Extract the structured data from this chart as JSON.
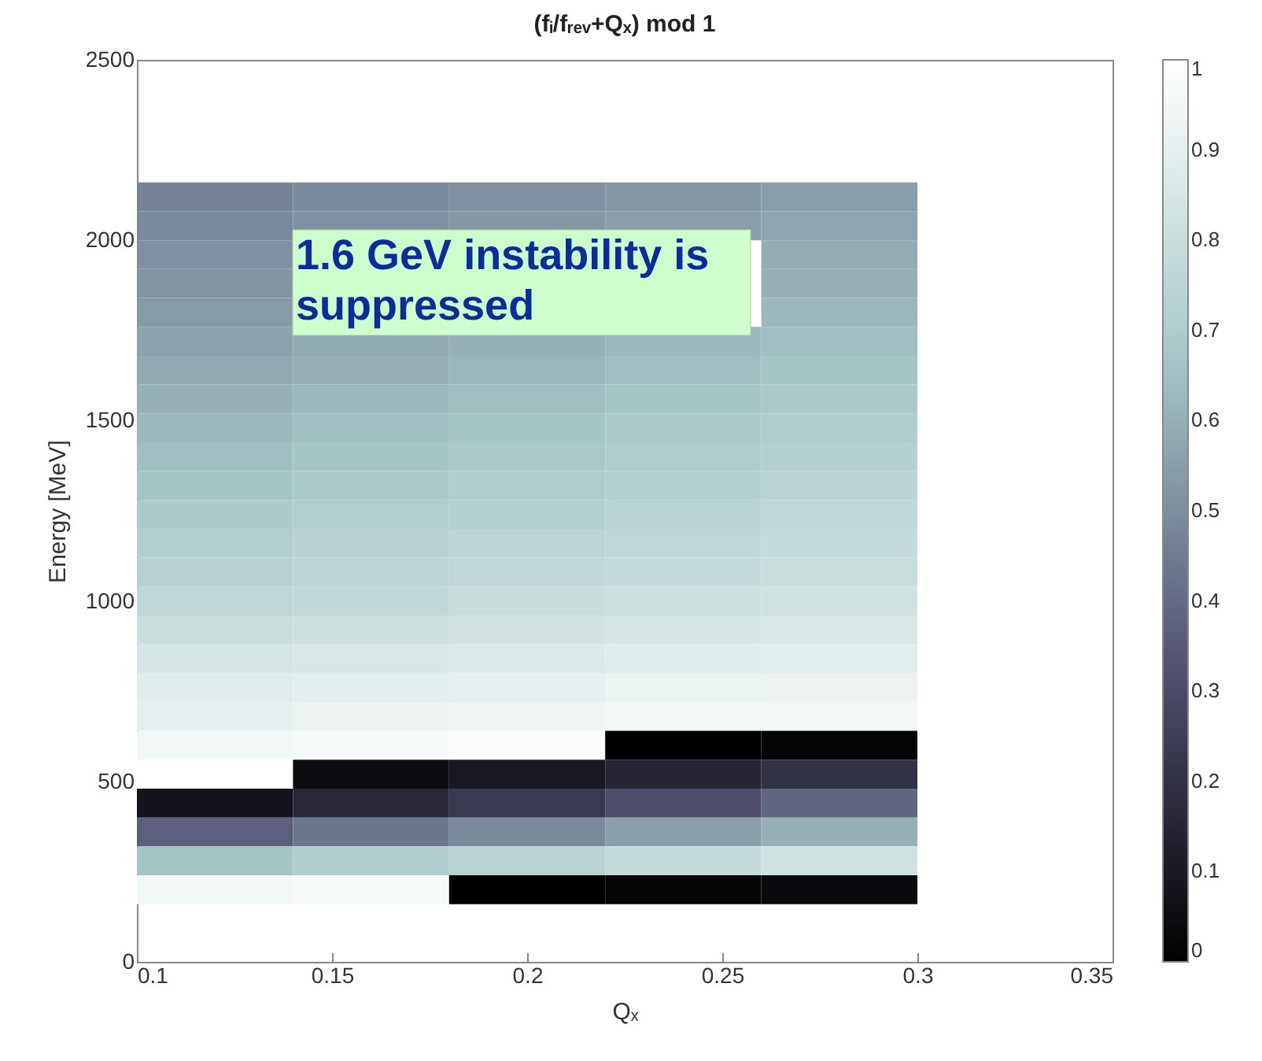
{
  "chart_data": {
    "type": "heatmap",
    "title": "(fᵢ/fᵣₑᵥ+Qₓ) mod 1",
    "xlabel": "Qₓ",
    "ylabel": "Energy [MeV]",
    "x": [
      0.12,
      0.16,
      0.2,
      0.24,
      0.28
    ],
    "y": [
      2120,
      2040,
      1960,
      1880,
      1800,
      1720,
      1640,
      1560,
      1480,
      1400,
      1320,
      1240,
      1160,
      1080,
      1000,
      920,
      840,
      760,
      680,
      600,
      520,
      440,
      360,
      280,
      200
    ],
    "cells": [
      [
        0.47,
        0.49,
        0.51,
        0.53,
        0.55
      ],
      [
        0.49,
        0.51,
        0.53,
        0.55,
        0.57
      ],
      [
        0.51,
        null,
        null,
        null,
        0.59
      ],
      [
        0.52,
        null,
        null,
        null,
        0.6
      ],
      [
        0.54,
        null,
        null,
        null,
        0.62
      ],
      [
        0.56,
        0.58,
        0.6,
        0.62,
        0.64
      ],
      [
        0.58,
        0.6,
        0.62,
        0.64,
        0.66
      ],
      [
        0.6,
        0.62,
        0.64,
        0.66,
        0.68
      ],
      [
        0.62,
        0.64,
        0.66,
        0.68,
        0.7
      ],
      [
        0.64,
        0.66,
        0.68,
        0.7,
        0.72
      ],
      [
        0.66,
        0.68,
        0.7,
        0.72,
        0.74
      ],
      [
        0.69,
        0.71,
        0.72,
        0.74,
        0.76
      ],
      [
        0.71,
        0.73,
        0.75,
        0.76,
        0.78
      ],
      [
        0.73,
        0.75,
        0.77,
        0.78,
        0.8
      ],
      [
        0.76,
        0.77,
        0.79,
        0.81,
        0.82
      ],
      [
        0.8,
        0.81,
        0.83,
        0.84,
        0.86
      ],
      [
        0.84,
        0.85,
        0.87,
        0.88,
        0.89
      ],
      [
        0.88,
        0.89,
        0.9,
        0.92,
        0.93
      ],
      [
        0.91,
        0.93,
        0.94,
        0.95,
        0.96
      ],
      [
        0.95,
        0.97,
        0.98,
        0.0,
        0.02
      ],
      [
        1.0,
        0.05,
        0.1,
        0.15,
        0.2
      ],
      [
        0.08,
        0.16,
        0.23,
        0.31,
        0.39
      ],
      [
        0.37,
        0.43,
        0.49,
        0.55,
        0.6
      ],
      [
        0.66,
        0.7,
        0.74,
        0.78,
        0.82
      ],
      [
        0.95,
        0.97,
        0.0,
        0.02,
        0.04
      ]
    ],
    "colors": [
      "#000000",
      "#535373",
      "#a7c7c7",
      "#ffffff"
    ],
    "clim": [
      0,
      1
    ],
    "cticks": [
      0,
      0.1,
      0.2,
      0.3,
      0.4,
      0.5,
      0.6,
      0.7,
      0.8,
      0.9,
      1
    ],
    "xlim": [
      0.1,
      0.35
    ],
    "xticks": [
      0.1,
      0.15,
      0.2,
      0.25,
      0.3,
      0.35
    ],
    "ylim": [
      0,
      2500
    ],
    "yticks": [
      0,
      500,
      1000,
      1500,
      2000,
      2500
    ],
    "annotations": [
      "1.6 GeV instability is suppressed"
    ]
  }
}
